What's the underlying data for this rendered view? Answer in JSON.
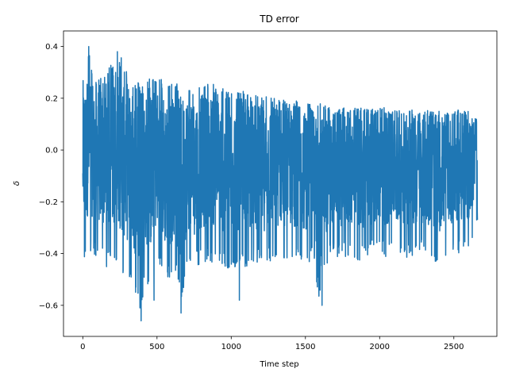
{
  "chart_data": {
    "type": "line",
    "title": "TD error",
    "xlabel": "Time step",
    "ylabel": "δ",
    "xlim": [
      -130,
      2790
    ],
    "ylim": [
      -0.72,
      0.46
    ],
    "xticks": [
      0,
      500,
      1000,
      1500,
      2000,
      2500
    ],
    "xtick_labels": [
      "0",
      "500",
      "1000",
      "1500",
      "2000",
      "2500"
    ],
    "yticks": [
      -0.6,
      -0.4,
      -0.2,
      0.0,
      0.2,
      0.4
    ],
    "ytick_labels": [
      "−0.6",
      "−0.4",
      "−0.2",
      "0.0",
      "0.2",
      "0.4"
    ],
    "grid": false,
    "series": [
      {
        "color": "#1f77b4",
        "n_points": 2660,
        "envelope": {
          "x": [
            0,
            25,
            40,
            60,
            100,
            150,
            200,
            230,
            280,
            330,
            380,
            390,
            420,
            450,
            500,
            560,
            620,
            660,
            700,
            750,
            800,
            850,
            900,
            950,
            1000,
            1050,
            1100,
            1150,
            1200,
            1250,
            1300,
            1350,
            1400,
            1450,
            1500,
            1550,
            1600,
            1650,
            1700,
            1750,
            1800,
            1850,
            1900,
            1950,
            2000,
            2050,
            2100,
            2150,
            2200,
            2250,
            2300,
            2350,
            2400,
            2450,
            2500,
            2550,
            2600,
            2660
          ],
          "upper": [
            0.32,
            0.3,
            0.4,
            0.34,
            0.3,
            0.28,
            0.36,
            0.38,
            0.36,
            0.28,
            0.26,
            0.25,
            0.26,
            0.28,
            0.28,
            0.27,
            0.25,
            0.27,
            0.26,
            0.25,
            0.25,
            0.26,
            0.25,
            0.24,
            0.23,
            0.24,
            0.22,
            0.22,
            0.21,
            0.21,
            0.2,
            0.2,
            0.19,
            0.2,
            0.18,
            0.18,
            0.18,
            0.17,
            0.18,
            0.17,
            0.17,
            0.17,
            0.16,
            0.16,
            0.17,
            0.16,
            0.16,
            0.15,
            0.16,
            0.15,
            0.16,
            0.15,
            0.15,
            0.14,
            0.16,
            0.15,
            0.15,
            0.12
          ],
          "lower": [
            -0.47,
            -0.42,
            -0.38,
            -0.4,
            -0.42,
            -0.45,
            -0.46,
            -0.43,
            -0.5,
            -0.52,
            -0.61,
            -0.66,
            -0.5,
            -0.56,
            -0.44,
            -0.54,
            -0.48,
            -0.63,
            -0.45,
            -0.47,
            -0.44,
            -0.45,
            -0.43,
            -0.46,
            -0.47,
            -0.45,
            -0.46,
            -0.43,
            -0.45,
            -0.44,
            -0.43,
            -0.42,
            -0.43,
            -0.42,
            -0.44,
            -0.43,
            -0.6,
            -0.43,
            -0.41,
            -0.42,
            -0.41,
            -0.43,
            -0.42,
            -0.41,
            -0.4,
            -0.42,
            -0.41,
            -0.4,
            -0.43,
            -0.41,
            -0.4,
            -0.42,
            -0.44,
            -0.41,
            -0.4,
            -0.41,
            -0.39,
            -0.27
          ],
          "start_value": -0.09,
          "end_value": -0.27
        },
        "spikes": [
          {
            "x": 40,
            "y": 0.4
          },
          {
            "x": 233,
            "y": 0.38
          },
          {
            "x": 385,
            "y": -0.61
          },
          {
            "x": 393,
            "y": -0.66
          },
          {
            "x": 662,
            "y": -0.63
          },
          {
            "x": 1612,
            "y": -0.6
          },
          {
            "x": 1055,
            "y": -0.58
          },
          {
            "x": 480,
            "y": -0.58
          }
        ]
      }
    ]
  }
}
